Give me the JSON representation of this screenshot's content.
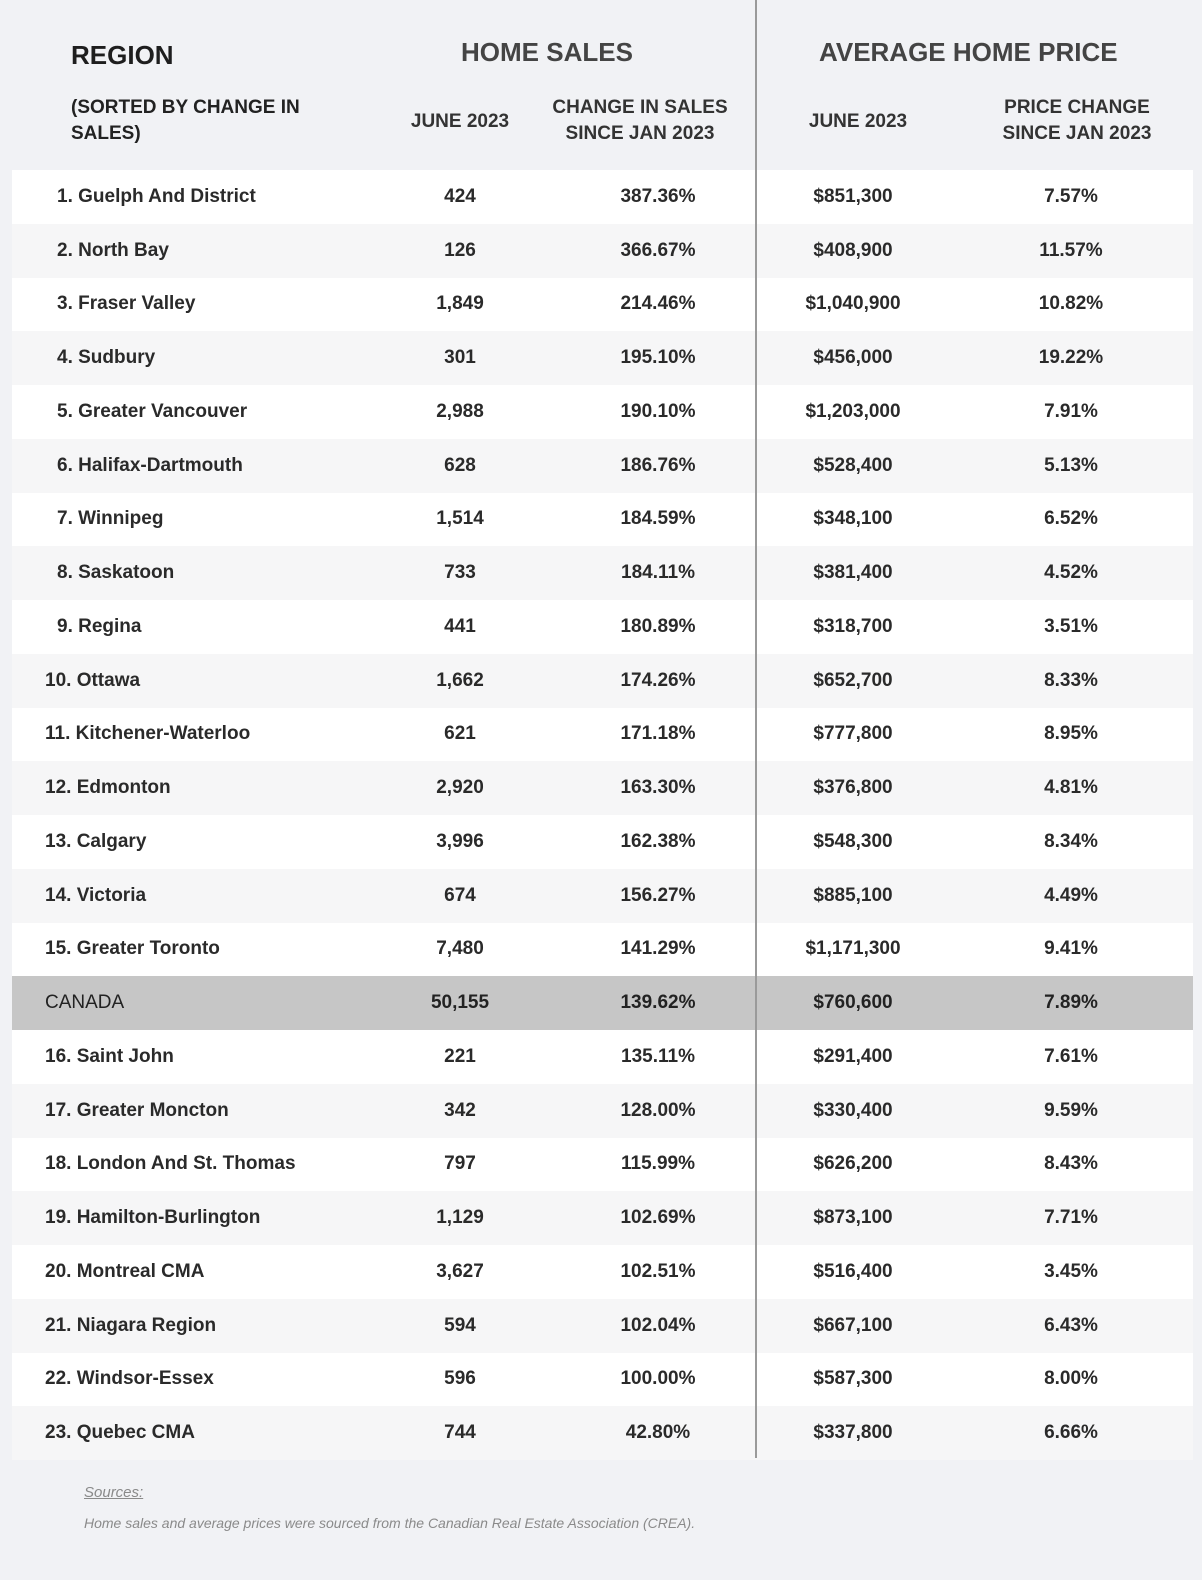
{
  "header": {
    "region": "REGION",
    "region_sub": "(SORTED BY CHANGE IN SALES)",
    "home_sales": "HOME SALES",
    "avg_price": "AVERAGE HOME PRICE",
    "sales_june": "JUNE 2023",
    "sales_change": "CHANGE IN SALES SINCE JAN 2023",
    "price_june": "JUNE 2023",
    "price_change": "PRICE CHANGE SINCE JAN 2023"
  },
  "rows": [
    {
      "region": "1. Guelph And District",
      "sales": "424",
      "sales_change": "387.36%",
      "price": "$851,300",
      "price_change": "7.57%"
    },
    {
      "region": "2. North Bay",
      "sales": "126",
      "sales_change": "366.67%",
      "price": "$408,900",
      "price_change": "11.57%"
    },
    {
      "region": "3. Fraser Valley",
      "sales": "1,849",
      "sales_change": "214.46%",
      "price": "$1,040,900",
      "price_change": "10.82%"
    },
    {
      "region": "4. Sudbury",
      "sales": "301",
      "sales_change": "195.10%",
      "price": "$456,000",
      "price_change": "19.22%"
    },
    {
      "region": "5. Greater Vancouver",
      "sales": "2,988",
      "sales_change": "190.10%",
      "price": "$1,203,000",
      "price_change": "7.91%"
    },
    {
      "region": "6. Halifax-Dartmouth",
      "sales": "628",
      "sales_change": "186.76%",
      "price": "$528,400",
      "price_change": "5.13%"
    },
    {
      "region": "7. Winnipeg",
      "sales": "1,514",
      "sales_change": "184.59%",
      "price": "$348,100",
      "price_change": "6.52%"
    },
    {
      "region": "8. Saskatoon",
      "sales": "733",
      "sales_change": "184.11%",
      "price": "$381,400",
      "price_change": "4.52%"
    },
    {
      "region": "9. Regina",
      "sales": "441",
      "sales_change": "180.89%",
      "price": "$318,700",
      "price_change": "3.51%"
    },
    {
      "region": "10. Ottawa",
      "sales": "1,662",
      "sales_change": "174.26%",
      "price": "$652,700",
      "price_change": "8.33%"
    },
    {
      "region": "11. Kitchener-Waterloo",
      "sales": "621",
      "sales_change": "171.18%",
      "price": "$777,800",
      "price_change": "8.95%"
    },
    {
      "region": "12. Edmonton",
      "sales": "2,920",
      "sales_change": "163.30%",
      "price": "$376,800",
      "price_change": "4.81%"
    },
    {
      "region": "13. Calgary",
      "sales": "3,996",
      "sales_change": "162.38%",
      "price": "$548,300",
      "price_change": "8.34%"
    },
    {
      "region": "14. Victoria",
      "sales": "674",
      "sales_change": "156.27%",
      "price": "$885,100",
      "price_change": "4.49%"
    },
    {
      "region": "15. Greater Toronto",
      "sales": "7,480",
      "sales_change": "141.29%",
      "price": "$1,171,300",
      "price_change": "9.41%"
    },
    {
      "region": "CANADA",
      "sales": "50,155",
      "sales_change": "139.62%",
      "price": "$760,600",
      "price_change": "7.89%",
      "total": true
    },
    {
      "region": "16. Saint John",
      "sales": "221",
      "sales_change": "135.11%",
      "price": "$291,400",
      "price_change": "7.61%"
    },
    {
      "region": "17. Greater Moncton",
      "sales": "342",
      "sales_change": "128.00%",
      "price": "$330,400",
      "price_change": "9.59%"
    },
    {
      "region": "18. London And St. Thomas",
      "sales": "797",
      "sales_change": "115.99%",
      "price": "$626,200",
      "price_change": "8.43%"
    },
    {
      "region": "19. Hamilton-Burlington",
      "sales": "1,129",
      "sales_change": "102.69%",
      "price": "$873,100",
      "price_change": "7.71%"
    },
    {
      "region": "20. Montreal CMA",
      "sales": "3,627",
      "sales_change": "102.51%",
      "price": "$516,400",
      "price_change": "3.45%"
    },
    {
      "region": "21. Niagara Region",
      "sales": "594",
      "sales_change": "102.04%",
      "price": "$667,100",
      "price_change": "6.43%"
    },
    {
      "region": "22. Windsor-Essex",
      "sales": "596",
      "sales_change": "100.00%",
      "price": "$587,300",
      "price_change": "8.00%"
    },
    {
      "region": "23. Quebec CMA",
      "sales": "744",
      "sales_change": "42.80%",
      "price": "$337,800",
      "price_change": "6.66%"
    }
  ],
  "footer": {
    "sources_label": "Sources:",
    "note": "Home sales and average prices were sourced from the Canadian Real Estate Association (CREA)."
  },
  "colors": {
    "background": "#f1f2f5",
    "total_row": "#c6c6c6",
    "divider": "#9a9a9a"
  }
}
